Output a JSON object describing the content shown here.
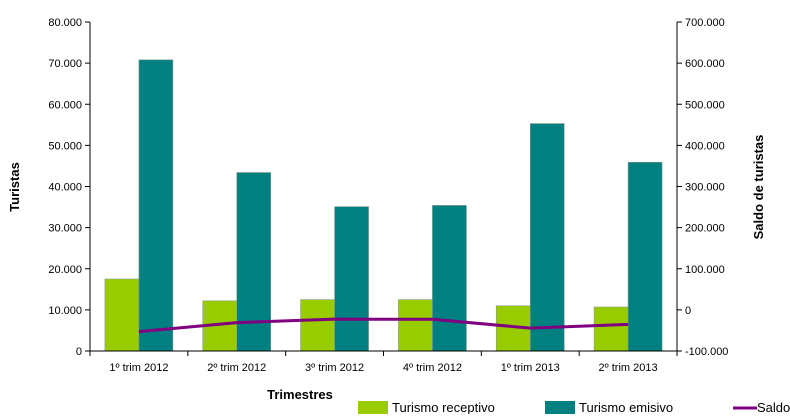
{
  "chart_data": {
    "type": "bar",
    "categories": [
      "1º trim 2012",
      "2º trim 2012",
      "3º trim 2012",
      "4º trim 2012",
      "1º trim 2013",
      "2º trim 2013"
    ],
    "series": [
      {
        "name": "Turismo receptivo",
        "axis": "left",
        "kind": "bar",
        "color": "#99cc00",
        "values": [
          17500,
          12200,
          12500,
          12500,
          11000,
          10700
        ]
      },
      {
        "name": "Turismo emisivo",
        "axis": "left",
        "kind": "bar",
        "color": "#008080",
        "values": [
          70800,
          43400,
          35100,
          35400,
          55300,
          45900
        ]
      },
      {
        "name": "Saldo",
        "axis": "right",
        "kind": "line",
        "color": "#800080",
        "values": [
          -53000,
          -31000,
          -22500,
          -22900,
          -44300,
          -35200
        ]
      }
    ],
    "xlabel": "Trimestres",
    "ylabel": "Turistas",
    "y2label": "Saldo de turistas",
    "ylim": [
      0,
      80000
    ],
    "y2lim": [
      -100000,
      700000
    ],
    "yticks": [
      "0",
      "10.000",
      "20.000",
      "30.000",
      "40.000",
      "50.000",
      "60.000",
      "70.000",
      "80.000"
    ],
    "y2ticks": [
      "-100.000",
      "0",
      "100.000",
      "200.000",
      "300.000",
      "400.000",
      "500.000",
      "600.000",
      "700.000"
    ],
    "grid": false,
    "legend_position": "bottom-right"
  }
}
